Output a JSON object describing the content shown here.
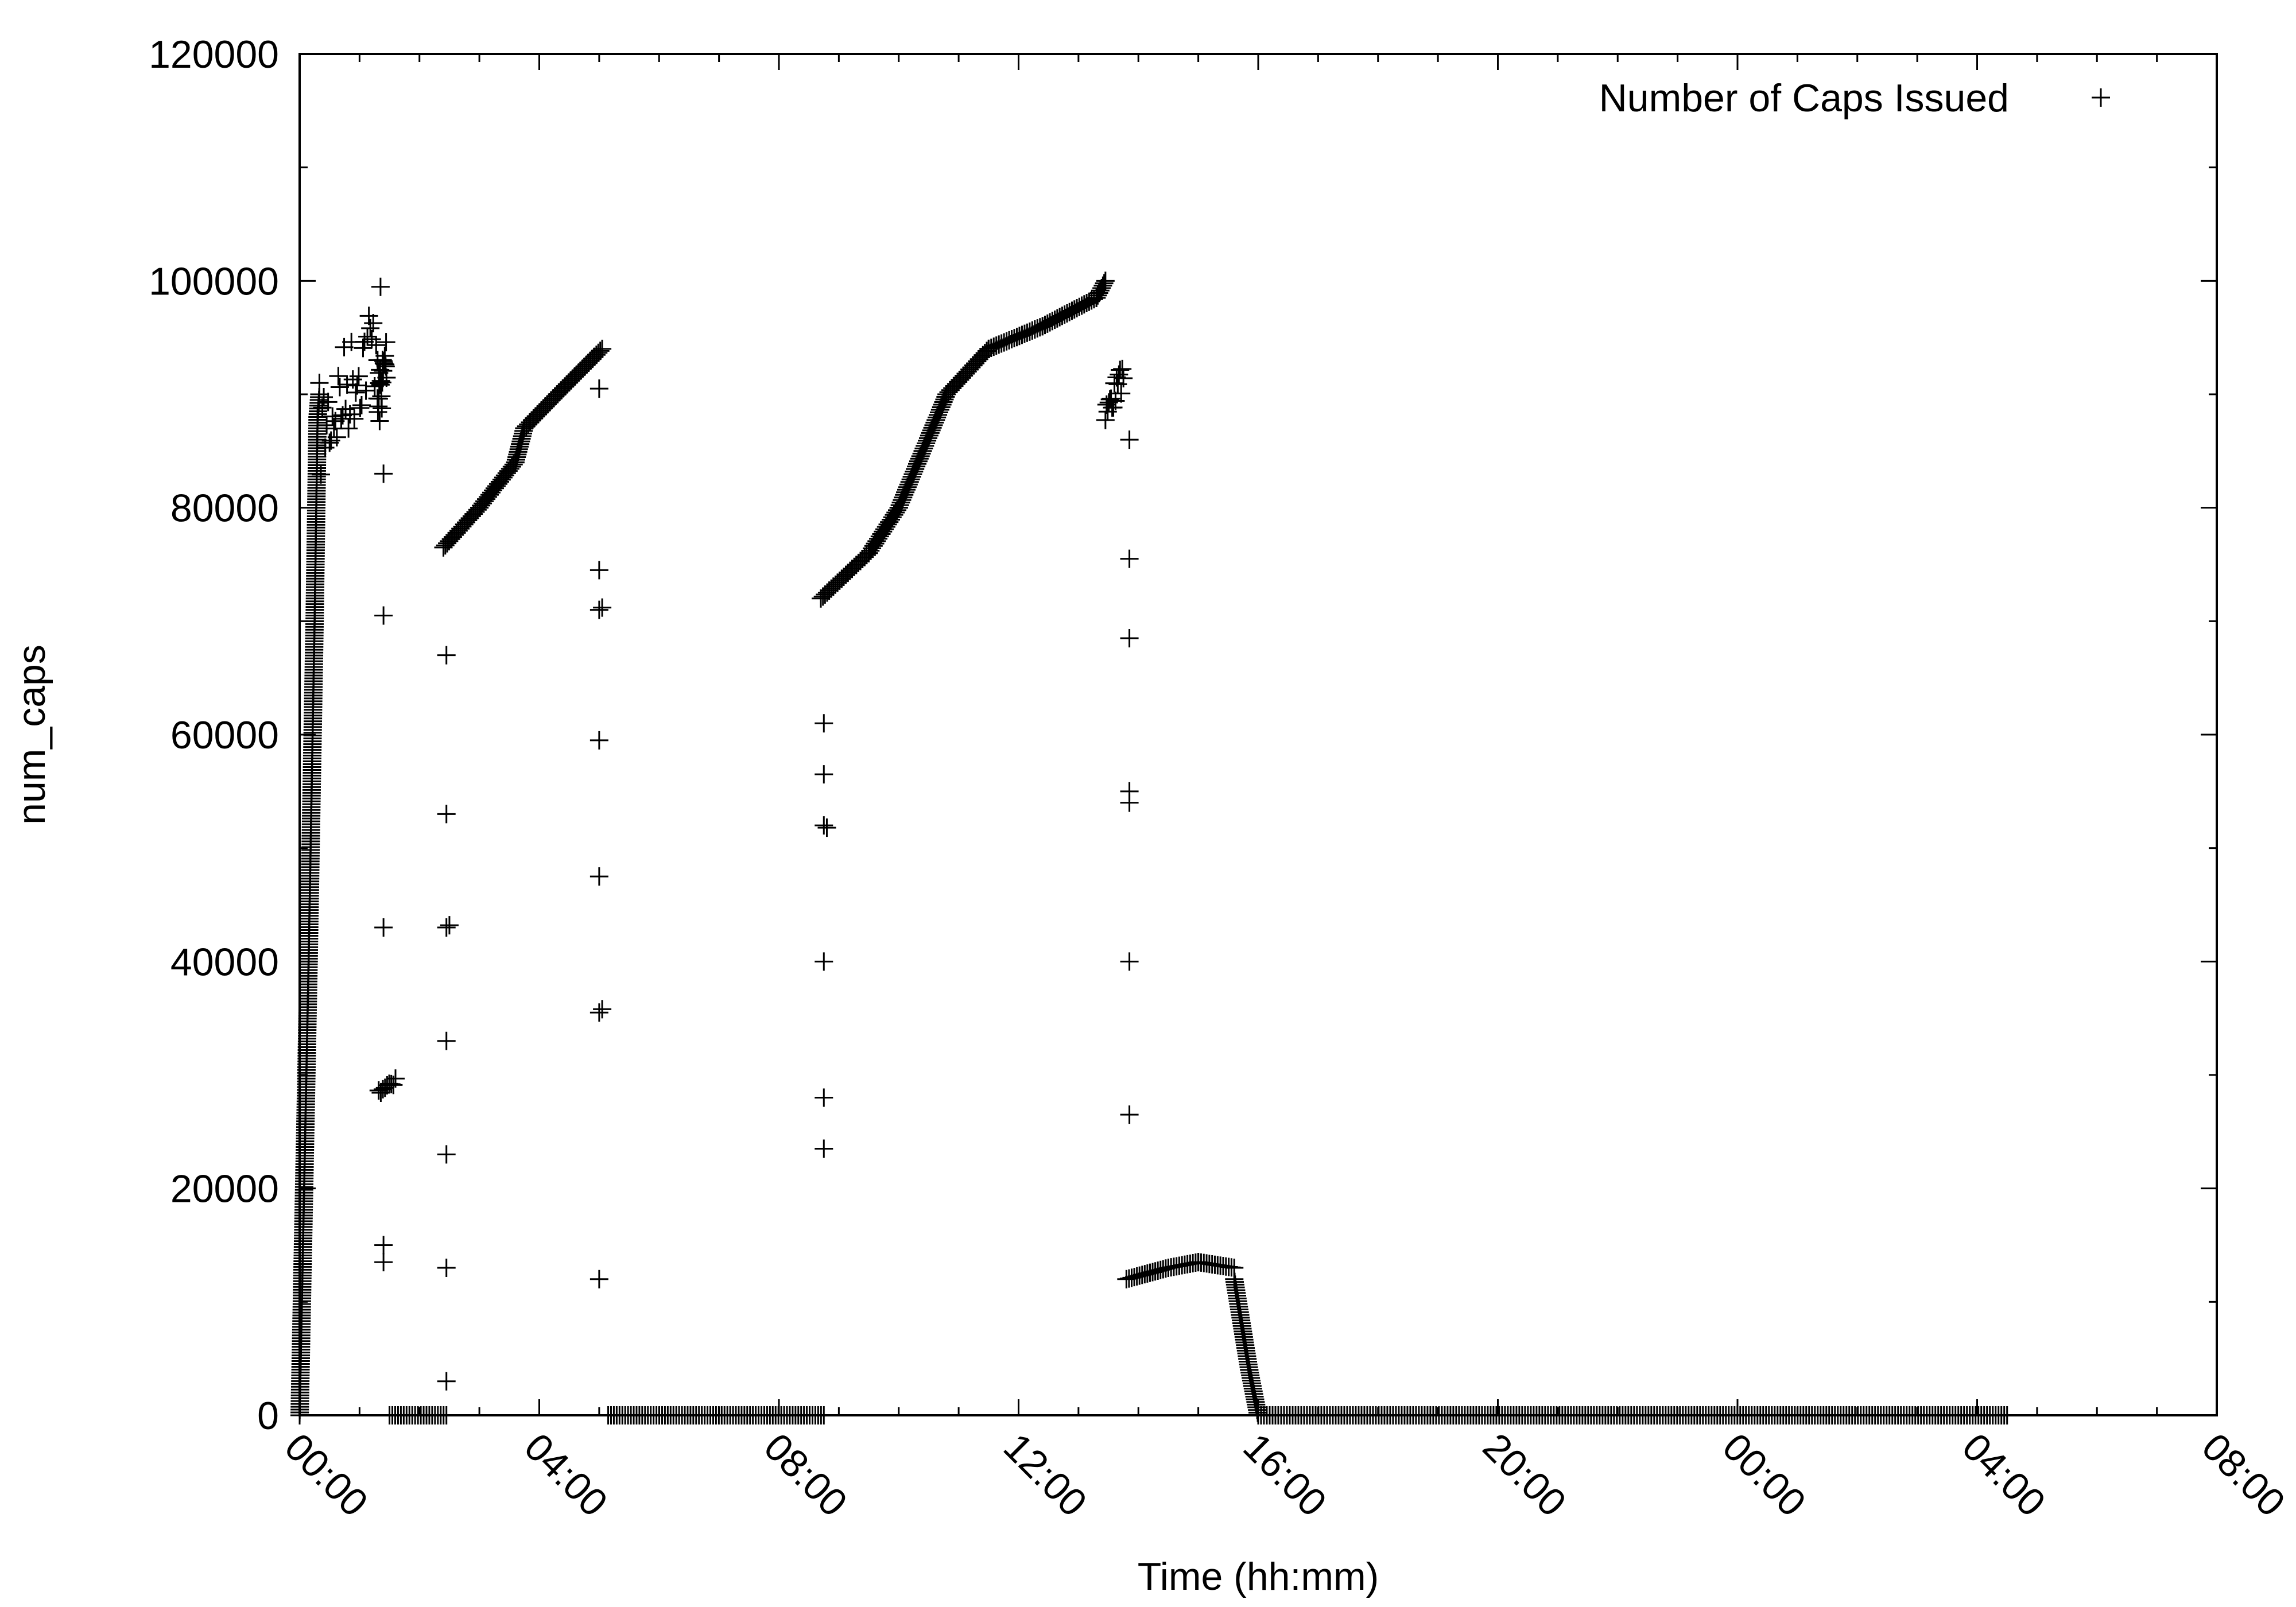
{
  "chart_data": {
    "type": "scatter",
    "title": "",
    "xlabel": "Time (hh:mm)",
    "ylabel": "num_caps",
    "x_unit": "hours",
    "xlim": [
      0,
      32
    ],
    "ylim": [
      0,
      120000
    ],
    "x_ticks": [
      {
        "value": 0,
        "label": "00:00"
      },
      {
        "value": 4,
        "label": "04:00"
      },
      {
        "value": 8,
        "label": "08:00"
      },
      {
        "value": 12,
        "label": "12:00"
      },
      {
        "value": 16,
        "label": "16:00"
      },
      {
        "value": 20,
        "label": "20:00"
      },
      {
        "value": 24,
        "label": "00:00"
      },
      {
        "value": 28,
        "label": "04:00"
      },
      {
        "value": 32,
        "label": "08:00"
      }
    ],
    "y_ticks": [
      {
        "value": 0,
        "label": "0"
      },
      {
        "value": 20000,
        "label": "20000"
      },
      {
        "value": 40000,
        "label": "40000"
      },
      {
        "value": 60000,
        "label": "60000"
      },
      {
        "value": 80000,
        "label": "80000"
      },
      {
        "value": 100000,
        "label": "100000"
      },
      {
        "value": 120000,
        "label": "120000"
      }
    ],
    "grid": false,
    "legend_position": "top-right",
    "series": [
      {
        "name": "Number of Caps Issued",
        "marker": "+",
        "color": "#000000",
        "segments": [
          {
            "points": [
              [
                0.0,
                0
              ],
              [
                0.15,
                40000
              ],
              [
                0.25,
                70000
              ],
              [
                0.3,
                88000
              ],
              [
                0.33,
                90000
              ]
            ]
          },
          {
            "points": [
              [
                0.33,
                91000
              ],
              [
                1.35,
                100000
              ]
            ],
            "jitter": 9000
          },
          {
            "points": [
              [
                1.3,
                91000
              ],
              [
                1.45,
                96000
              ]
            ],
            "jitter": 5000
          },
          {
            "points": [
              [
                1.32,
                29000
              ],
              [
                1.6,
                30000
              ]
            ],
            "jitter": 800
          },
          {
            "points": [
              [
                1.5,
                0
              ],
              [
                2.45,
                0
              ]
            ]
          },
          {
            "points": [
              [
                2.4,
                76500
              ],
              [
                3.0,
                80000
              ],
              [
                3.6,
                84000
              ],
              [
                3.75,
                87000
              ],
              [
                4.3,
                90000
              ],
              [
                5.05,
                94000
              ]
            ]
          },
          {
            "points": [
              [
                5.15,
                0
              ],
              [
                8.75,
                0
              ]
            ]
          },
          {
            "points": [
              [
                8.7,
                72000
              ],
              [
                9.5,
                76000
              ],
              [
                10.0,
                80000
              ],
              [
                10.4,
                85000
              ],
              [
                10.8,
                90000
              ],
              [
                11.5,
                94000
              ],
              [
                12.4,
                96000
              ],
              [
                13.3,
                98500
              ],
              [
                13.45,
                100000
              ]
            ]
          },
          {
            "points": [
              [
                13.45,
                89500
              ],
              [
                13.75,
                93000
              ]
            ],
            "jitter": 2500
          },
          {
            "points": [
              [
                13.8,
                12000
              ],
              [
                14.5,
                13000
              ],
              [
                15.0,
                13500
              ],
              [
                15.6,
                13000
              ]
            ]
          },
          {
            "points": [
              [
                15.6,
                12000
              ],
              [
                15.85,
                4000
              ],
              [
                16.0,
                0
              ]
            ]
          },
          {
            "points": [
              [
                16.0,
                0
              ],
              [
                28.5,
                0
              ]
            ]
          }
        ],
        "points": [
          [
            1.4,
            83000
          ],
          [
            1.4,
            70500
          ],
          [
            1.4,
            43000
          ],
          [
            1.4,
            15000
          ],
          [
            1.4,
            13500
          ],
          [
            2.45,
            67000
          ],
          [
            2.45,
            53000
          ],
          [
            2.45,
            43000
          ],
          [
            2.5,
            43200
          ],
          [
            2.45,
            33000
          ],
          [
            2.45,
            23000
          ],
          [
            2.45,
            13000
          ],
          [
            2.45,
            3000
          ],
          [
            5.0,
            90500
          ],
          [
            5.0,
            74500
          ],
          [
            5.0,
            71000
          ],
          [
            5.05,
            71200
          ],
          [
            5.0,
            59500
          ],
          [
            5.0,
            47500
          ],
          [
            5.0,
            35500
          ],
          [
            5.05,
            35800
          ],
          [
            5.0,
            12000
          ],
          [
            8.75,
            61000
          ],
          [
            8.75,
            56500
          ],
          [
            8.75,
            52000
          ],
          [
            8.8,
            51800
          ],
          [
            8.75,
            40000
          ],
          [
            8.75,
            28000
          ],
          [
            8.75,
            23500
          ],
          [
            13.85,
            86000
          ],
          [
            13.85,
            75500
          ],
          [
            13.85,
            68500
          ],
          [
            13.85,
            55000
          ],
          [
            13.85,
            54000
          ],
          [
            13.85,
            40000
          ],
          [
            13.85,
            26500
          ]
        ]
      }
    ]
  }
}
